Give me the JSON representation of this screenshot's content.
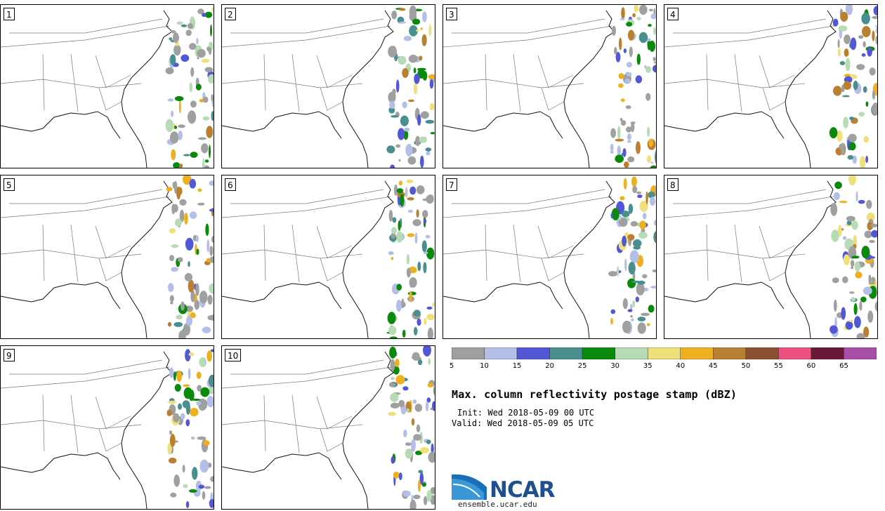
{
  "panels": [
    {
      "label": "1"
    },
    {
      "label": "2"
    },
    {
      "label": "3"
    },
    {
      "label": "4"
    },
    {
      "label": "5"
    },
    {
      "label": "6"
    },
    {
      "label": "7"
    },
    {
      "label": "8"
    },
    {
      "label": "9"
    },
    {
      "label": "10"
    }
  ],
  "colorbar": {
    "colors": [
      "#a0a0a0",
      "#b4bfe8",
      "#5258d5",
      "#4a8f8f",
      "#0a8a0a",
      "#b6dbb5",
      "#efe07a",
      "#efb020",
      "#b88030",
      "#8a5030",
      "#ee5080",
      "#6a1838",
      "#a84ea8"
    ],
    "ticks": [
      "5",
      "10",
      "15",
      "20",
      "25",
      "30",
      "35",
      "40",
      "45",
      "50",
      "55",
      "60",
      "65"
    ]
  },
  "title": "Max. column reflectivity postage stamp (dBZ)",
  "init": "Init: Wed 2018-05-09 00 UTC",
  "valid": "Valid: Wed 2018-05-09 05 UTC",
  "logo_text": "NCAR",
  "url": "ensemble.ucar.edu"
}
